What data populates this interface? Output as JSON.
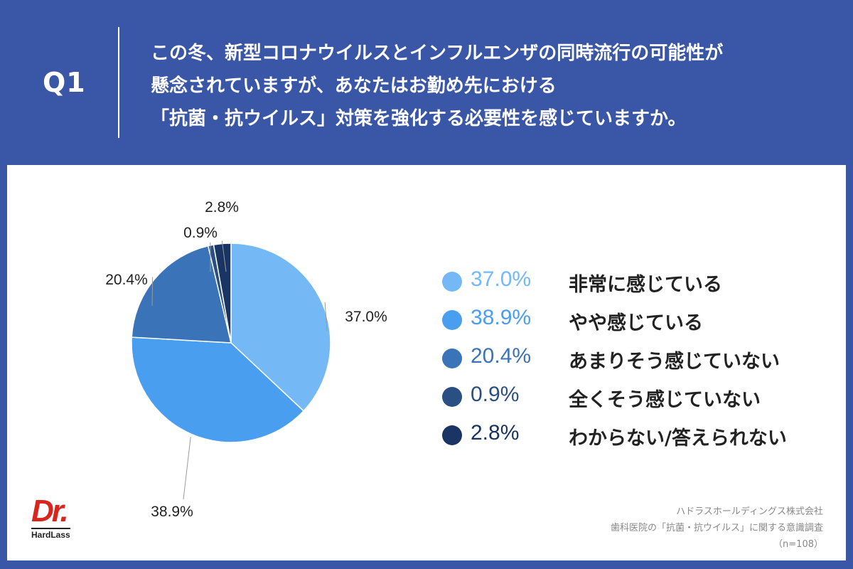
{
  "question": {
    "label": "Q1",
    "lines": [
      "この冬、新型コロナウイルスとインフルエンザの同時流行の可能性が",
      "懸念されていますが、あなたはお勤め先における",
      "「抗菌・抗ウイルス」対策を強化する必要性を感じていますか。"
    ]
  },
  "chart_data": {
    "type": "pie",
    "categories": [
      "非常に感じている",
      "やや感じている",
      "あまりそう感じていない",
      "全くそう感じていない",
      "わからない/答えられない"
    ],
    "values": [
      37.0,
      38.9,
      20.4,
      0.9,
      2.8
    ],
    "labels": [
      "37.0%",
      "38.9%",
      "20.4%",
      "0.9%",
      "2.8%"
    ],
    "colors": [
      "#74b9f5",
      "#4a9ef0",
      "#3a73b8",
      "#2a4f82",
      "#1a3563"
    ],
    "title": "",
    "legend_placement": "right"
  },
  "source": {
    "company": "ハドラスホールディングス株式会社",
    "survey": "歯科医院の「抗菌・抗ウイルス」に関する意識調査",
    "sample": "（n=108）"
  },
  "logo": {
    "main": "Dr.",
    "sub": "HardLass"
  }
}
